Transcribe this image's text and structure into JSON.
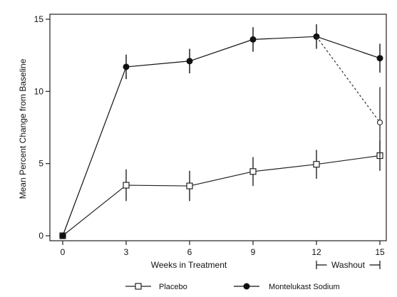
{
  "chart_data": {
    "type": "line",
    "xlabel": "Weeks in Treatment",
    "ylabel": "Mean Percent Change from Baseline",
    "xlim": [
      0,
      15
    ],
    "ylim": [
      0,
      15
    ],
    "x_ticks": [
      "0",
      "3",
      "6",
      "9",
      "12",
      "15"
    ],
    "y_ticks": [
      "0",
      "5",
      "10",
      "15"
    ],
    "grid": false,
    "legend_position": "bottom",
    "annotation": {
      "label": "Washout",
      "x_range": [
        12,
        15
      ]
    },
    "series": [
      {
        "name": "Placebo",
        "marker": "open-square",
        "line_style": "solid",
        "color": "#222222",
        "x": [
          0,
          3,
          6,
          9,
          12,
          15
        ],
        "y": [
          0,
          3.5,
          3.45,
          4.45,
          4.95,
          5.55
        ],
        "error": [
          0,
          1.1,
          1.05,
          1.0,
          1.0,
          1.05
        ]
      },
      {
        "name": "Montelukast Sodium",
        "marker": "filled-circle",
        "line_style": "solid",
        "color": "#111111",
        "x": [
          0,
          3,
          6,
          9,
          12,
          15
        ],
        "y": [
          0,
          11.7,
          12.1,
          13.6,
          13.8,
          12.3
        ],
        "error": [
          0,
          0.85,
          0.85,
          0.85,
          0.85,
          1.0
        ]
      },
      {
        "name": "",
        "marker": "open-circle",
        "line_style": "dotted",
        "color": "#333333",
        "x": [
          12,
          15
        ],
        "y": [
          13.8,
          7.85
        ],
        "error": [
          0,
          2.45
        ]
      }
    ]
  }
}
